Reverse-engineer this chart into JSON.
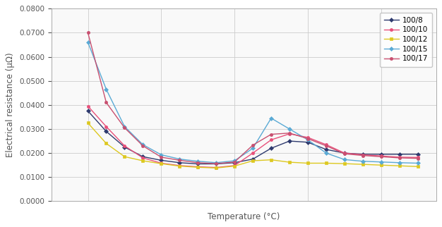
{
  "title": "",
  "xlabel": "Temperature (°C)",
  "ylabel": "Electrical resistance (μΩ)",
  "xlim": [
    100,
    1150
  ],
  "ylim": [
    0.0,
    0.08
  ],
  "yticks": [
    0.0,
    0.01,
    0.02,
    0.03,
    0.04,
    0.05,
    0.06,
    0.07,
    0.08
  ],
  "series": [
    {
      "label": "100/8",
      "color": "#2e3a6e",
      "marker": "D",
      "markersize": 3,
      "linewidth": 1.0,
      "x": [
        200,
        250,
        300,
        350,
        400,
        450,
        500,
        550,
        600,
        650,
        700,
        750,
        800,
        850,
        900,
        950,
        1000,
        1050,
        1100
      ],
      "y": [
        0.0375,
        0.029,
        0.0225,
        0.0185,
        0.017,
        0.016,
        0.0155,
        0.0155,
        0.016,
        0.0175,
        0.022,
        0.025,
        0.0245,
        0.0215,
        0.02,
        0.0195,
        0.0195,
        0.0195,
        0.0195
      ]
    },
    {
      "label": "100/10",
      "color": "#e8507a",
      "marker": "o",
      "markersize": 3,
      "linewidth": 1.0,
      "x": [
        200,
        250,
        300,
        350,
        400,
        450,
        500,
        550,
        600,
        650,
        700,
        750,
        800,
        850,
        900,
        950,
        1000,
        1050,
        1100
      ],
      "y": [
        0.0395,
        0.031,
        0.023,
        0.018,
        0.0158,
        0.0148,
        0.0143,
        0.014,
        0.0148,
        0.02,
        0.0255,
        0.028,
        0.0265,
        0.0235,
        0.02,
        0.0193,
        0.0188,
        0.0183,
        0.0182
      ]
    },
    {
      "label": "100/12",
      "color": "#ddc820",
      "marker": "s",
      "markersize": 3,
      "linewidth": 1.0,
      "x": [
        200,
        250,
        300,
        350,
        400,
        450,
        500,
        550,
        600,
        650,
        700,
        750,
        800,
        850,
        900,
        950,
        1000,
        1050,
        1100
      ],
      "y": [
        0.0325,
        0.024,
        0.0185,
        0.0168,
        0.0156,
        0.0146,
        0.0141,
        0.0138,
        0.0146,
        0.0168,
        0.0172,
        0.0162,
        0.0158,
        0.0158,
        0.0156,
        0.0153,
        0.015,
        0.0147,
        0.0144
      ]
    },
    {
      "label": "100/15",
      "color": "#5aaad5",
      "marker": "D",
      "markersize": 3,
      "linewidth": 1.0,
      "x": [
        200,
        250,
        300,
        350,
        400,
        450,
        500,
        550,
        600,
        650,
        700,
        750,
        800,
        850,
        900,
        950,
        1000,
        1050,
        1100
      ],
      "y": [
        0.066,
        0.0465,
        0.031,
        0.0235,
        0.0193,
        0.0175,
        0.0166,
        0.016,
        0.0168,
        0.022,
        0.0345,
        0.03,
        0.0255,
        0.02,
        0.0173,
        0.0166,
        0.0163,
        0.016,
        0.0158
      ]
    },
    {
      "label": "100/17",
      "color": "#c85070",
      "marker": "o",
      "markersize": 3,
      "linewidth": 1.0,
      "x": [
        200,
        250,
        300,
        350,
        400,
        450,
        500,
        550,
        600,
        650,
        700,
        750,
        800,
        850,
        900,
        950,
        1000,
        1050,
        1100
      ],
      "y": [
        0.07,
        0.041,
        0.0305,
        0.023,
        0.0183,
        0.017,
        0.016,
        0.0156,
        0.0163,
        0.0233,
        0.0278,
        0.0283,
        0.026,
        0.023,
        0.0197,
        0.019,
        0.0185,
        0.018,
        0.0178
      ]
    }
  ],
  "background_color": "#ffffff",
  "plot_bg_color": "#f9f9f9",
  "grid_color": "#cccccc",
  "legend_fontsize": 7.5,
  "axis_label_fontsize": 8.5,
  "tick_fontsize": 7.5,
  "spine_color": "#aaaaaa"
}
